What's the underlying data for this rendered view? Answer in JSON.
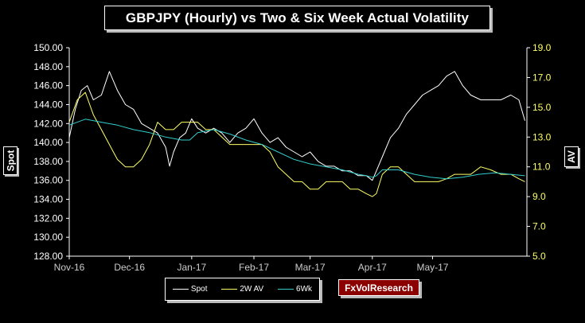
{
  "chart_data": {
    "type": "line",
    "title": "GBPJPY (Hourly) vs Two & Six Week Actual Volatility",
    "ylabel_left": "Spot",
    "ylabel_right": "AV",
    "ylim_left": [
      128,
      150
    ],
    "ylim_right": [
      5,
      19
    ],
    "y_ticks_left": [
      "128.00",
      "130.00",
      "132.00",
      "134.00",
      "136.00",
      "138.00",
      "140.00",
      "142.00",
      "144.00",
      "146.00",
      "148.00",
      "150.00"
    ],
    "y_ticks_right": [
      "5.0",
      "7.0",
      "9.0",
      "11.0",
      "13.0",
      "15.0",
      "17.0",
      "19.0"
    ],
    "x_ticks": [
      "Nov-16",
      "Dec-16",
      "Jan-17",
      "Feb-17",
      "Mar-17",
      "Apr-17",
      "May-17"
    ],
    "xlim": [
      0,
      228
    ],
    "x_tick_pos": [
      0,
      30,
      61,
      92,
      120,
      151,
      181
    ],
    "grid": false,
    "legend_position": "bottom",
    "series": [
      {
        "name": "Spot",
        "axis": "left",
        "color": "#ffffff",
        "x": [
          0,
          3,
          6,
          9,
          12,
          16,
          20,
          24,
          28,
          32,
          36,
          40,
          44,
          48,
          50,
          52,
          55,
          58,
          61,
          64,
          68,
          72,
          76,
          80,
          84,
          88,
          92,
          96,
          100,
          104,
          108,
          112,
          116,
          120,
          124,
          128,
          132,
          136,
          140,
          144,
          148,
          151,
          153,
          156,
          160,
          164,
          168,
          172,
          176,
          180,
          184,
          188,
          192,
          196,
          200,
          205,
          210,
          215,
          220,
          224,
          227
        ],
        "y": [
          140.5,
          143.5,
          145.5,
          146,
          144.5,
          145,
          147.5,
          145.5,
          144,
          143.5,
          142,
          141.5,
          141,
          139.5,
          137.5,
          139,
          140.5,
          141,
          142.5,
          141.5,
          141,
          141.5,
          141,
          140,
          141,
          141.5,
          142.5,
          141,
          140,
          140.5,
          139.5,
          139,
          138.5,
          139,
          138,
          137.5,
          137.5,
          137,
          137,
          136.5,
          136.5,
          136,
          137,
          138.5,
          140.5,
          141.5,
          143,
          144,
          145,
          145.5,
          146,
          147,
          147.5,
          146,
          145,
          144.5,
          144.5,
          144.5,
          145,
          144.5,
          142.3
        ]
      },
      {
        "name": "2W AV",
        "axis": "right",
        "color": "#ffff66",
        "x": [
          0,
          4,
          8,
          12,
          16,
          20,
          24,
          28,
          32,
          36,
          40,
          44,
          48,
          52,
          56,
          60,
          64,
          68,
          72,
          76,
          80,
          84,
          88,
          92,
          96,
          100,
          104,
          108,
          112,
          116,
          120,
          124,
          128,
          132,
          136,
          140,
          144,
          148,
          151,
          153,
          156,
          160,
          164,
          168,
          172,
          176,
          180,
          184,
          188,
          192,
          196,
          200,
          205,
          210,
          215,
          220,
          224,
          227
        ],
        "y": [
          14,
          15.5,
          16,
          14.5,
          13.5,
          12.5,
          11.5,
          11,
          11,
          11.5,
          12.5,
          14,
          13.5,
          13.5,
          14,
          14,
          14,
          13.5,
          13.5,
          13,
          12.5,
          12.5,
          12.5,
          12.5,
          12.5,
          12,
          11,
          10.5,
          10,
          10,
          9.5,
          9.5,
          10,
          10,
          10,
          9.5,
          9.5,
          9.2,
          9,
          9.2,
          10.5,
          11,
          11,
          10.5,
          10,
          10,
          10,
          10,
          10.2,
          10.5,
          10.5,
          10.5,
          11,
          10.8,
          10.5,
          10.5,
          10.2,
          10
        ]
      },
      {
        "name": "6Wk",
        "axis": "right",
        "color": "#33cccc",
        "x": [
          0,
          8,
          16,
          24,
          32,
          40,
          48,
          56,
          60,
          64,
          72,
          80,
          88,
          96,
          104,
          112,
          120,
          128,
          136,
          144,
          148,
          151,
          153,
          156,
          164,
          172,
          180,
          188,
          196,
          204,
          212,
          220,
          227
        ],
        "y": [
          13.8,
          14.2,
          14,
          13.8,
          13.5,
          13.3,
          13,
          12.8,
          12.8,
          13.3,
          13.5,
          13.2,
          12.8,
          12.5,
          12,
          11.5,
          11.2,
          11,
          10.8,
          10.5,
          10.4,
          10.3,
          10.4,
          10.8,
          10.8,
          10.5,
          10.3,
          10.2,
          10.3,
          10.5,
          10.6,
          10.5,
          10.4
        ]
      }
    ]
  },
  "legend": {
    "items": [
      {
        "label": "Spot",
        "color": "#ffffff"
      },
      {
        "label": "2W AV",
        "color": "#ffff66"
      },
      {
        "label": "6Wk",
        "color": "#33cccc"
      }
    ]
  },
  "brand": "FxVolResearch",
  "colors": {
    "axis": "#ffffff",
    "right_axis_text": "#ffff66",
    "background": "#000000"
  }
}
